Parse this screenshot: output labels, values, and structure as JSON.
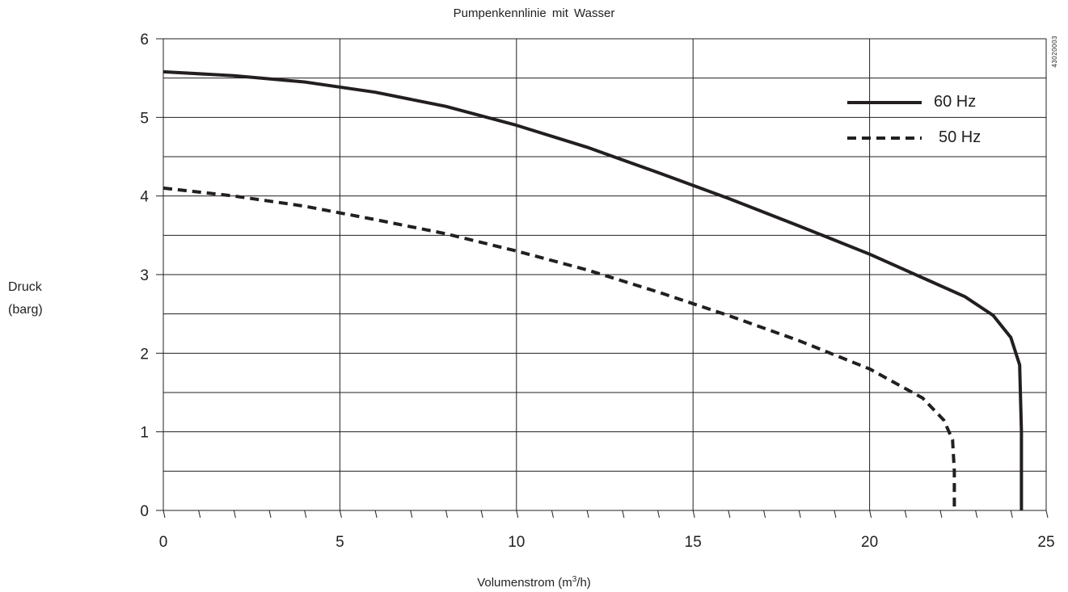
{
  "chart_data": {
    "type": "line",
    "title": "Pumpenkennlinie mit Wasser",
    "xlabel": "Volumenstrom (m",
    "xlabel_sup": "3",
    "xlabel_end": "/h)",
    "ylabel_line1": "Druck",
    "ylabel_line2": "(barg)",
    "figure_id": "43020003",
    "xlim": [
      0,
      25
    ],
    "ylim": [
      0,
      6
    ],
    "x_ticks": [
      "0",
      "5",
      "10",
      "15",
      "20",
      "25"
    ],
    "y_ticks": [
      "0",
      "1",
      "2",
      "3",
      "4",
      "5",
      "6"
    ],
    "grid": true,
    "legend_position": "top-right",
    "series": [
      {
        "name": "60 Hz",
        "style": "solid",
        "color": "#231f20",
        "x": [
          0,
          2,
          4,
          6,
          8,
          10,
          12,
          14,
          16,
          18,
          20,
          21.5,
          22.7,
          23.5,
          24.0,
          24.25,
          24.3,
          24.3
        ],
        "y": [
          5.58,
          5.53,
          5.45,
          5.32,
          5.14,
          4.9,
          4.62,
          4.3,
          3.97,
          3.62,
          3.26,
          2.96,
          2.72,
          2.48,
          2.2,
          1.85,
          1.0,
          0.0
        ]
      },
      {
        "name": "50 Hz",
        "style": "dashed",
        "color": "#231f20",
        "x": [
          0,
          2,
          4,
          6,
          8,
          10,
          12,
          14,
          16,
          18,
          20,
          21.5,
          22.1,
          22.35,
          22.4,
          22.4
        ],
        "y": [
          4.1,
          4.0,
          3.87,
          3.7,
          3.52,
          3.3,
          3.06,
          2.78,
          2.48,
          2.16,
          1.8,
          1.43,
          1.15,
          0.9,
          0.5,
          0.0
        ]
      }
    ]
  }
}
